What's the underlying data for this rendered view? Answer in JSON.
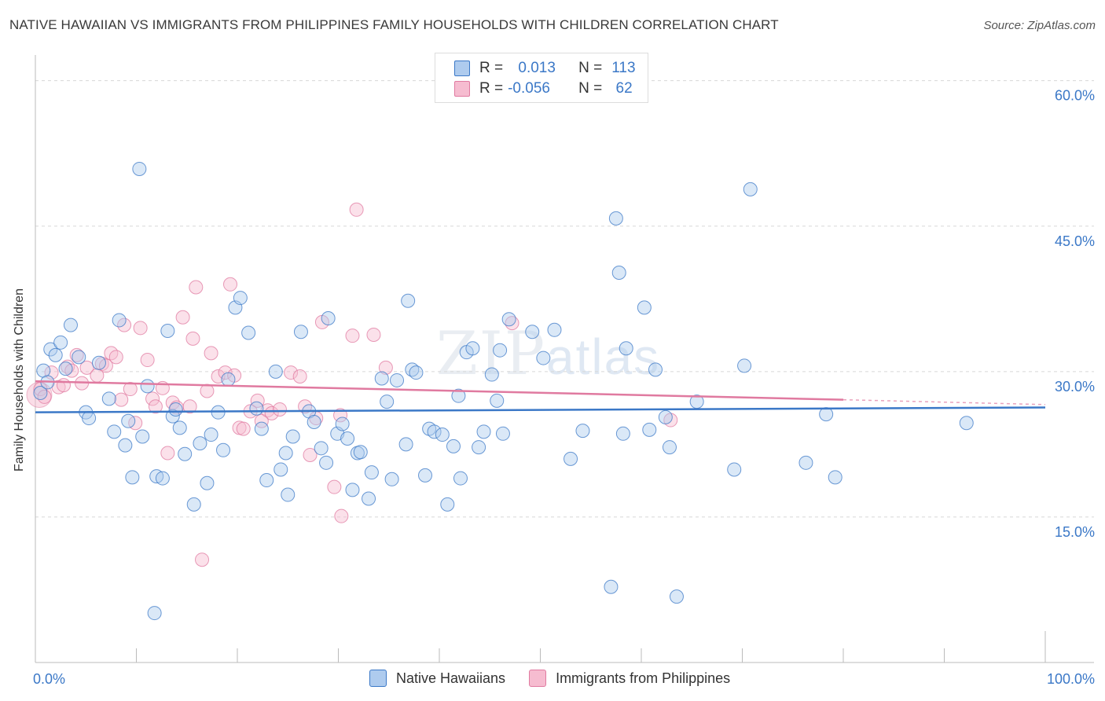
{
  "title": "NATIVE HAWAIIAN VS IMMIGRANTS FROM PHILIPPINES FAMILY HOUSEHOLDS WITH CHILDREN CORRELATION CHART",
  "source": "Source: ZipAtlas.com",
  "watermark": {
    "zip": "ZIP",
    "atlas": "atlas"
  },
  "colors": {
    "blue": "#3b78c7",
    "pink": "#e07aa0",
    "blue_fill": "#aecbee",
    "pink_fill": "#f6bcd0",
    "grid": "#d8d8d8"
  },
  "legend": {
    "rows": [
      {
        "r_label": "R =",
        "r_value": " 0.013",
        "n_label": "N =",
        "n_value": "113",
        "color": "#aecbee"
      },
      {
        "r_label": "R =",
        "r_value": "-0.056",
        "n_label": "N =",
        "n_value": " 62",
        "color": "#f6bcd0"
      }
    ]
  },
  "bottom_legend": [
    {
      "label": "Native Hawaiians",
      "color": "#aecbee"
    },
    {
      "label": "Immigrants from Philippines",
      "color": "#f6bcd0"
    }
  ],
  "chart_data": {
    "type": "scatter",
    "ylabel": "Family Households with Children",
    "xlim": [
      0,
      100
    ],
    "ylim": [
      0,
      60
    ],
    "x_tick_labels": [
      "0.0%",
      "100.0%"
    ],
    "y_ticks": [
      15,
      30,
      45,
      60
    ],
    "y_tick_labels": [
      "15.0%",
      "30.0%",
      "45.0%",
      "60.0%"
    ],
    "grid": true,
    "series": [
      {
        "name": "Native Hawaiians",
        "color": "#3b78c7",
        "trend": {
          "x": [
            0,
            100
          ],
          "y": [
            25.8,
            26.3
          ]
        },
        "points": [
          [
            0.5,
            27.8
          ],
          [
            0.8,
            30.1
          ],
          [
            1.2,
            28.9
          ],
          [
            1.5,
            32.3
          ],
          [
            2.0,
            31.7
          ],
          [
            2.5,
            33.0
          ],
          [
            3.0,
            30.3
          ],
          [
            3.5,
            34.8
          ],
          [
            4.3,
            31.5
          ],
          [
            5.0,
            25.8
          ],
          [
            5.3,
            25.2
          ],
          [
            6.3,
            30.9
          ],
          [
            7.3,
            27.2
          ],
          [
            7.8,
            23.8
          ],
          [
            8.3,
            35.3
          ],
          [
            8.9,
            22.4
          ],
          [
            9.2,
            24.9
          ],
          [
            9.6,
            19.1
          ],
          [
            10.3,
            50.9
          ],
          [
            10.6,
            23.3
          ],
          [
            11.1,
            28.5
          ],
          [
            11.8,
            5.1
          ],
          [
            12.0,
            19.2
          ],
          [
            12.6,
            19.0
          ],
          [
            13.1,
            34.2
          ],
          [
            13.6,
            25.4
          ],
          [
            13.9,
            26.1
          ],
          [
            14.3,
            24.2
          ],
          [
            14.8,
            21.5
          ],
          [
            15.7,
            16.3
          ],
          [
            16.3,
            22.6
          ],
          [
            17.0,
            18.5
          ],
          [
            17.4,
            23.5
          ],
          [
            18.1,
            25.8
          ],
          [
            18.6,
            21.9
          ],
          [
            19.1,
            29.2
          ],
          [
            19.8,
            36.6
          ],
          [
            20.3,
            37.6
          ],
          [
            21.1,
            34.0
          ],
          [
            21.9,
            26.2
          ],
          [
            22.4,
            24.1
          ],
          [
            22.9,
            18.8
          ],
          [
            23.8,
            30.0
          ],
          [
            24.3,
            19.9
          ],
          [
            24.8,
            21.6
          ],
          [
            25.0,
            17.3
          ],
          [
            25.5,
            23.3
          ],
          [
            26.3,
            34.1
          ],
          [
            27.1,
            25.9
          ],
          [
            27.6,
            24.8
          ],
          [
            28.3,
            22.1
          ],
          [
            28.8,
            20.6
          ],
          [
            29.0,
            35.5
          ],
          [
            29.9,
            23.6
          ],
          [
            30.4,
            24.6
          ],
          [
            30.9,
            23.1
          ],
          [
            31.4,
            17.8
          ],
          [
            31.9,
            21.6
          ],
          [
            32.2,
            21.7
          ],
          [
            33.0,
            16.9
          ],
          [
            33.3,
            19.6
          ],
          [
            34.3,
            29.3
          ],
          [
            34.8,
            26.9
          ],
          [
            35.3,
            18.9
          ],
          [
            35.8,
            29.1
          ],
          [
            36.7,
            22.5
          ],
          [
            36.9,
            37.3
          ],
          [
            37.3,
            30.2
          ],
          [
            37.7,
            29.9
          ],
          [
            38.6,
            19.3
          ],
          [
            39.0,
            24.1
          ],
          [
            39.5,
            23.8
          ],
          [
            40.3,
            23.5
          ],
          [
            40.8,
            16.3
          ],
          [
            41.4,
            22.3
          ],
          [
            41.9,
            27.5
          ],
          [
            42.1,
            19.0
          ],
          [
            42.7,
            32.0
          ],
          [
            43.3,
            32.4
          ],
          [
            43.9,
            22.2
          ],
          [
            44.4,
            23.8
          ],
          [
            45.2,
            29.7
          ],
          [
            45.7,
            27.0
          ],
          [
            46.0,
            32.2
          ],
          [
            46.3,
            23.6
          ],
          [
            46.9,
            35.4
          ],
          [
            49.2,
            34.1
          ],
          [
            50.3,
            31.4
          ],
          [
            51.4,
            34.3
          ],
          [
            53.0,
            21.0
          ],
          [
            54.2,
            23.9
          ],
          [
            57.0,
            7.8
          ],
          [
            57.5,
            45.8
          ],
          [
            57.8,
            40.2
          ],
          [
            58.2,
            23.6
          ],
          [
            58.5,
            32.4
          ],
          [
            60.3,
            36.6
          ],
          [
            60.8,
            24.0
          ],
          [
            61.4,
            30.2
          ],
          [
            62.4,
            25.3
          ],
          [
            62.8,
            22.2
          ],
          [
            63.5,
            6.8
          ],
          [
            65.5,
            26.9
          ],
          [
            69.2,
            19.9
          ],
          [
            70.2,
            30.6
          ],
          [
            70.8,
            48.8
          ],
          [
            76.3,
            20.6
          ],
          [
            78.3,
            25.6
          ],
          [
            79.2,
            19.1
          ],
          [
            92.2,
            24.7
          ]
        ]
      },
      {
        "name": "Immigrants from Philippines",
        "color": "#e07aa0",
        "trend": {
          "x": [
            0,
            80
          ],
          "y": [
            29.0,
            27.1
          ]
        },
        "trend_dashed": {
          "x": [
            80,
            100
          ],
          "y": [
            27.1,
            26.6
          ]
        },
        "points": [
          [
            0.5,
            28.2
          ],
          [
            0.9,
            27.4
          ],
          [
            1.6,
            29.9
          ],
          [
            2.3,
            28.4
          ],
          [
            2.8,
            28.6
          ],
          [
            3.2,
            30.5
          ],
          [
            3.6,
            30.1
          ],
          [
            4.1,
            31.7
          ],
          [
            4.6,
            28.8
          ],
          [
            5.1,
            30.4
          ],
          [
            6.1,
            29.6
          ],
          [
            6.6,
            30.8
          ],
          [
            7.0,
            30.6
          ],
          [
            7.5,
            31.9
          ],
          [
            8.0,
            31.5
          ],
          [
            8.5,
            27.1
          ],
          [
            8.8,
            34.8
          ],
          [
            9.4,
            28.2
          ],
          [
            9.9,
            24.7
          ],
          [
            10.4,
            34.5
          ],
          [
            11.1,
            31.2
          ],
          [
            11.6,
            27.2
          ],
          [
            11.9,
            26.4
          ],
          [
            12.6,
            28.3
          ],
          [
            13.1,
            21.6
          ],
          [
            13.6,
            26.8
          ],
          [
            14.0,
            26.3
          ],
          [
            14.6,
            35.6
          ],
          [
            15.3,
            26.4
          ],
          [
            15.6,
            33.4
          ],
          [
            15.9,
            38.7
          ],
          [
            16.5,
            10.6
          ],
          [
            17.0,
            28.0
          ],
          [
            17.4,
            31.9
          ],
          [
            18.1,
            29.5
          ],
          [
            18.8,
            29.9
          ],
          [
            19.3,
            39.0
          ],
          [
            19.7,
            29.6
          ],
          [
            20.2,
            24.2
          ],
          [
            20.6,
            24.1
          ],
          [
            21.3,
            25.9
          ],
          [
            22.0,
            27.0
          ],
          [
            22.4,
            24.9
          ],
          [
            23.0,
            26.0
          ],
          [
            23.4,
            25.7
          ],
          [
            24.2,
            26.1
          ],
          [
            25.3,
            29.9
          ],
          [
            26.2,
            29.5
          ],
          [
            26.7,
            26.4
          ],
          [
            27.2,
            21.4
          ],
          [
            27.8,
            25.2
          ],
          [
            28.4,
            35.1
          ],
          [
            29.6,
            18.1
          ],
          [
            30.2,
            25.5
          ],
          [
            30.3,
            15.1
          ],
          [
            31.4,
            33.7
          ],
          [
            31.8,
            46.7
          ],
          [
            33.5,
            33.8
          ],
          [
            34.7,
            30.4
          ],
          [
            47.2,
            35.0
          ],
          [
            62.9,
            25.0
          ]
        ]
      }
    ]
  }
}
